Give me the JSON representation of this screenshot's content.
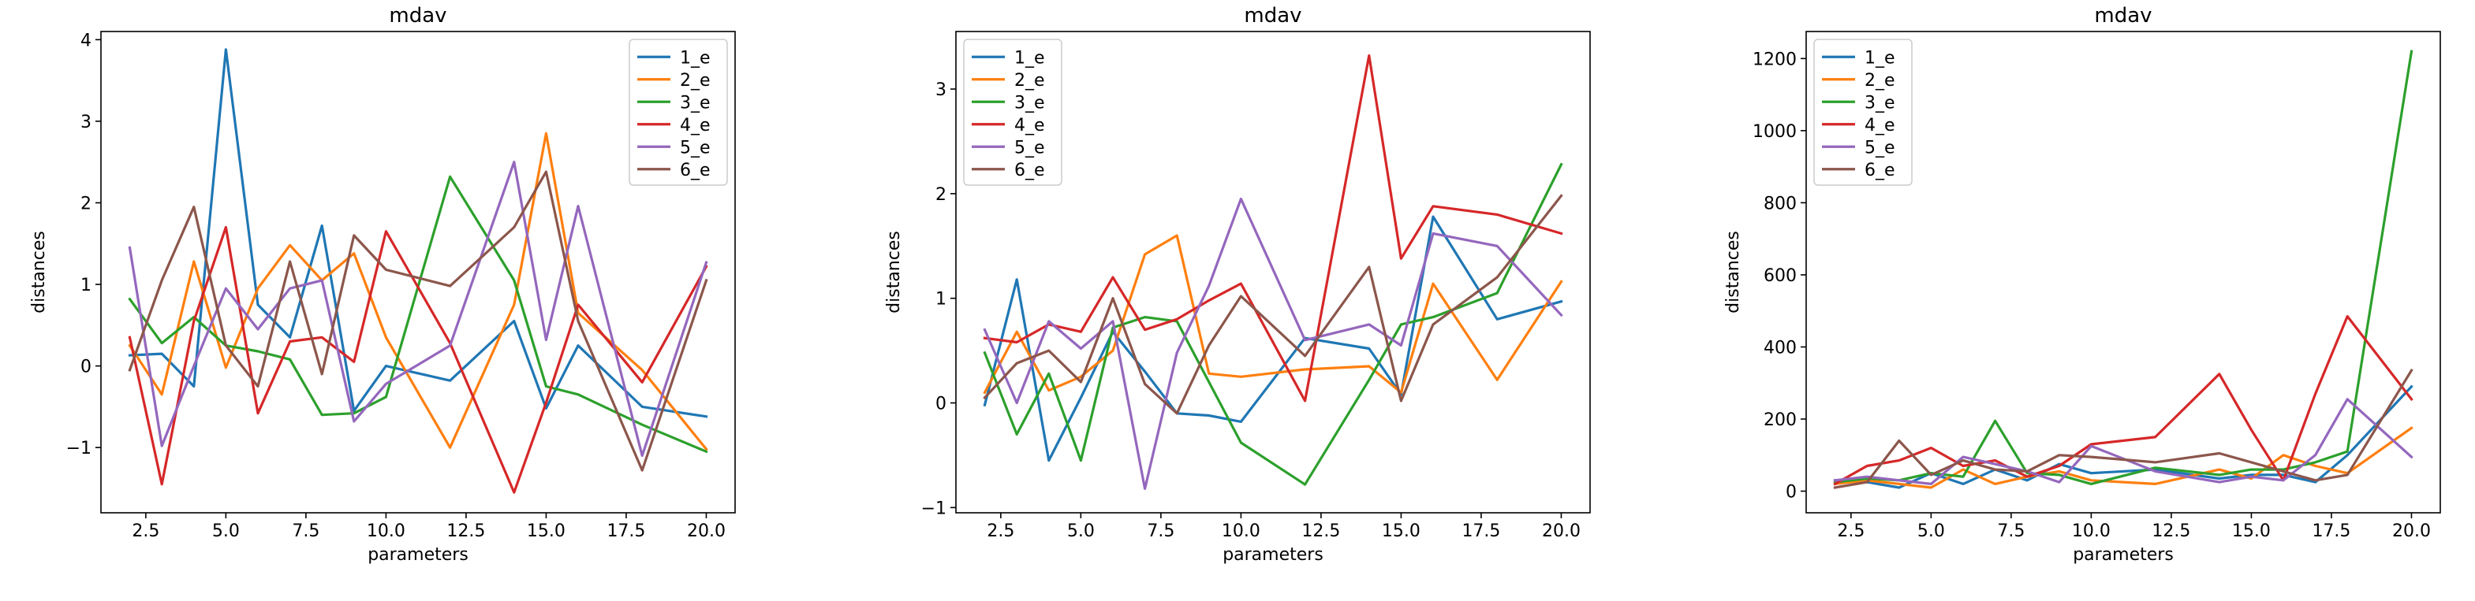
{
  "chart_data": [
    {
      "type": "line",
      "title": "mdav",
      "xlabel": "parameters",
      "ylabel": "distances",
      "xlim": [
        1.1,
        20.9
      ],
      "ylim": [
        -1.8,
        4.1
      ],
      "xticks": [
        2.5,
        5.0,
        7.5,
        10.0,
        12.5,
        15.0,
        17.5,
        20.0
      ],
      "xtick_labels": [
        "2.5",
        "5.0",
        "7.5",
        "10.0",
        "12.5",
        "15.0",
        "17.5",
        "20.0"
      ],
      "yticks": [
        -1,
        0,
        1,
        2,
        3,
        4
      ],
      "ytick_labels": [
        "−1",
        "0",
        "1",
        "2",
        "3",
        "4"
      ],
      "legend_position": "upper right",
      "x": [
        2,
        3,
        4,
        5,
        6,
        7,
        8,
        9,
        10,
        12,
        14,
        15,
        16,
        18,
        20
      ],
      "series": [
        {
          "name": "1_e",
          "color": "#1f77b4",
          "values": [
            0.13,
            0.15,
            -0.25,
            3.88,
            0.75,
            0.35,
            1.72,
            -0.55,
            0.0,
            -0.18,
            0.55,
            -0.52,
            0.25,
            -0.5,
            -0.62
          ]
        },
        {
          "name": "2_e",
          "color": "#ff7f0e",
          "values": [
            0.25,
            -0.35,
            1.28,
            -0.02,
            0.95,
            1.48,
            1.05,
            1.38,
            0.35,
            -1.0,
            0.75,
            2.85,
            0.65,
            -0.05,
            -1.02
          ]
        },
        {
          "name": "3_e",
          "color": "#2ca02c",
          "values": [
            0.82,
            0.28,
            0.6,
            0.25,
            0.18,
            0.08,
            -0.6,
            -0.58,
            -0.38,
            2.32,
            1.05,
            -0.25,
            -0.35,
            -0.72,
            -1.05
          ]
        },
        {
          "name": "4_e",
          "color": "#d62728",
          "values": [
            0.35,
            -1.45,
            0.55,
            1.7,
            -0.58,
            0.3,
            0.35,
            0.05,
            1.65,
            0.28,
            -1.55,
            -0.45,
            0.75,
            -0.2,
            1.22
          ]
        },
        {
          "name": "5_e",
          "color": "#9467bd",
          "values": [
            1.45,
            -0.98,
            0.0,
            0.95,
            0.45,
            0.95,
            1.05,
            -0.68,
            -0.22,
            0.25,
            2.5,
            0.32,
            1.96,
            -1.1,
            1.27
          ]
        },
        {
          "name": "6_e",
          "color": "#8c564b",
          "values": [
            -0.05,
            1.05,
            1.95,
            0.25,
            -0.25,
            1.28,
            -0.1,
            1.6,
            1.18,
            0.98,
            1.7,
            2.38,
            0.55,
            -1.28,
            1.05
          ]
        }
      ]
    },
    {
      "type": "line",
      "title": "mdav",
      "xlabel": "parameters",
      "ylabel": "distances",
      "xlim": [
        1.1,
        20.9
      ],
      "ylim": [
        -1.05,
        3.55
      ],
      "xticks": [
        2.5,
        5.0,
        7.5,
        10.0,
        12.5,
        15.0,
        17.5,
        20.0
      ],
      "xtick_labels": [
        "2.5",
        "5.0",
        "7.5",
        "10.0",
        "12.5",
        "15.0",
        "17.5",
        "20.0"
      ],
      "yticks": [
        -1,
        0,
        1,
        2,
        3
      ],
      "ytick_labels": [
        "−1",
        "0",
        "1",
        "2",
        "3"
      ],
      "legend_position": "upper left",
      "x": [
        2,
        3,
        4,
        5,
        6,
        7,
        8,
        9,
        10,
        12,
        14,
        15,
        16,
        18,
        20
      ],
      "series": [
        {
          "name": "1_e",
          "color": "#1f77b4",
          "values": [
            -0.02,
            1.18,
            -0.55,
            0.05,
            0.68,
            0.3,
            -0.1,
            -0.12,
            -0.18,
            0.62,
            0.52,
            0.08,
            1.78,
            0.8,
            0.97
          ]
        },
        {
          "name": "2_e",
          "color": "#ff7f0e",
          "values": [
            0.1,
            0.68,
            0.12,
            0.25,
            0.5,
            1.42,
            1.6,
            0.28,
            0.25,
            0.32,
            0.35,
            0.1,
            1.14,
            0.22,
            1.16
          ]
        },
        {
          "name": "3_e",
          "color": "#2ca02c",
          "values": [
            0.48,
            -0.3,
            0.28,
            -0.55,
            0.72,
            0.82,
            0.78,
            0.2,
            -0.38,
            -0.78,
            0.22,
            0.75,
            0.82,
            1.05,
            2.28
          ]
        },
        {
          "name": "4_e",
          "color": "#d62728",
          "values": [
            0.62,
            0.58,
            0.75,
            0.68,
            1.2,
            0.7,
            0.8,
            0.98,
            1.14,
            0.02,
            3.32,
            1.38,
            1.88,
            1.8,
            1.62
          ]
        },
        {
          "name": "5_e",
          "color": "#9467bd",
          "values": [
            0.7,
            0.0,
            0.78,
            0.52,
            0.78,
            -0.82,
            0.48,
            1.12,
            1.95,
            0.6,
            0.75,
            0.55,
            1.62,
            1.5,
            0.84
          ]
        },
        {
          "name": "6_e",
          "color": "#8c564b",
          "values": [
            0.05,
            0.38,
            0.5,
            0.2,
            1.0,
            0.18,
            -0.1,
            0.55,
            1.02,
            0.45,
            1.3,
            0.02,
            0.75,
            1.2,
            1.98
          ]
        }
      ]
    },
    {
      "type": "line",
      "title": "mdav",
      "xlabel": "parameters",
      "ylabel": "distances",
      "xlim": [
        1.1,
        20.9
      ],
      "ylim": [
        -60,
        1275
      ],
      "xticks": [
        2.5,
        5.0,
        7.5,
        10.0,
        12.5,
        15.0,
        17.5,
        20.0
      ],
      "xtick_labels": [
        "2.5",
        "5.0",
        "7.5",
        "10.0",
        "12.5",
        "15.0",
        "17.5",
        "20.0"
      ],
      "yticks": [
        0,
        200,
        400,
        600,
        800,
        1000,
        1200
      ],
      "ytick_labels": [
        "0",
        "200",
        "400",
        "600",
        "800",
        "1000",
        "1200"
      ],
      "legend_position": "upper left",
      "x": [
        2,
        3,
        4,
        5,
        6,
        7,
        8,
        9,
        10,
        12,
        14,
        15,
        16,
        17,
        18,
        20
      ],
      "series": [
        {
          "name": "1_e",
          "color": "#1f77b4",
          "values": [
            30,
            25,
            10,
            50,
            20,
            60,
            30,
            75,
            50,
            60,
            35,
            45,
            45,
            25,
            100,
            290
          ]
        },
        {
          "name": "2_e",
          "color": "#ff7f0e",
          "values": [
            20,
            30,
            20,
            10,
            60,
            20,
            40,
            55,
            30,
            20,
            60,
            35,
            100,
            70,
            50,
            175
          ]
        },
        {
          "name": "3_e",
          "color": "#2ca02c",
          "values": [
            25,
            35,
            30,
            50,
            40,
            195,
            50,
            45,
            20,
            65,
            45,
            60,
            60,
            80,
            110,
            1220
          ]
        },
        {
          "name": "4_e",
          "color": "#d62728",
          "values": [
            20,
            70,
            85,
            120,
            70,
            85,
            40,
            70,
            130,
            150,
            325,
            170,
            30,
            270,
            485,
            255
          ]
        },
        {
          "name": "5_e",
          "color": "#9467bd",
          "values": [
            30,
            40,
            30,
            20,
            95,
            75,
            55,
            25,
            125,
            55,
            25,
            40,
            30,
            100,
            255,
            95
          ]
        },
        {
          "name": "6_e",
          "color": "#8c564b",
          "values": [
            10,
            25,
            140,
            45,
            85,
            60,
            55,
            100,
            95,
            80,
            105,
            80,
            55,
            30,
            45,
            335
          ]
        }
      ]
    }
  ]
}
